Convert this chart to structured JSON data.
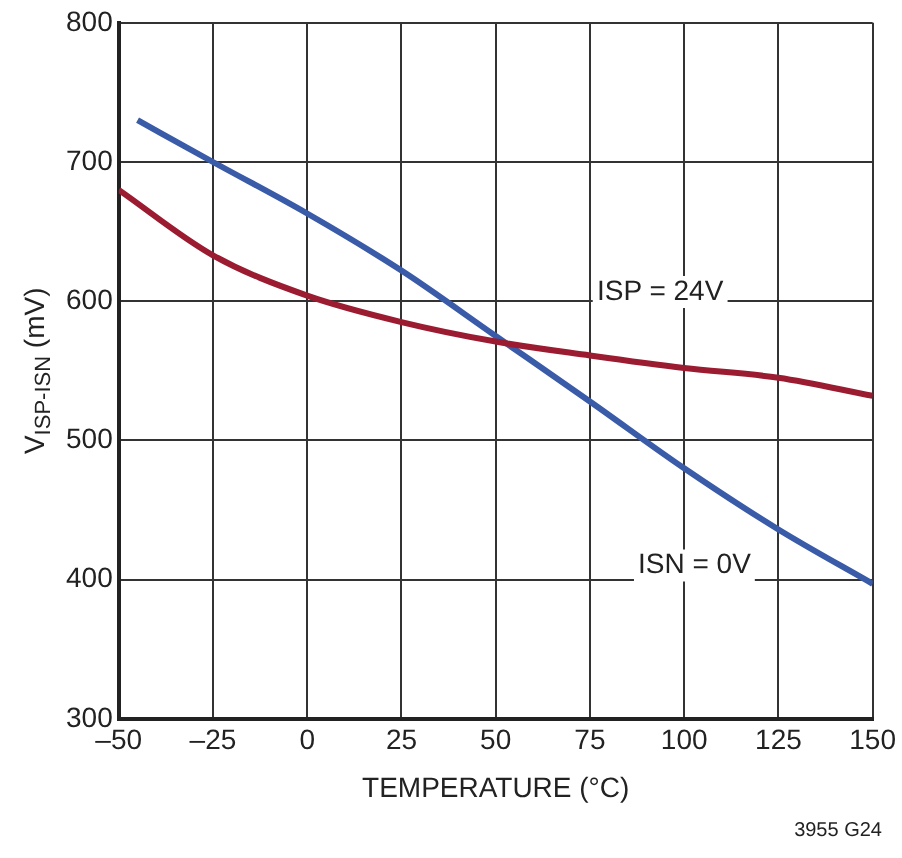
{
  "chart_data": {
    "type": "line",
    "xlabel": "TEMPERATURE (°C)",
    "ylabel": "V$_{ISP-ISN}$ (mV)",
    "x": [
      -50,
      -25,
      0,
      25,
      50,
      75,
      100,
      125,
      150
    ],
    "xlim": [
      -50,
      150
    ],
    "xticks": [
      {
        "value": -50,
        "label": "–50"
      },
      {
        "value": -25,
        "label": "–25"
      },
      0,
      25,
      50,
      75,
      100,
      125,
      150
    ],
    "ylim": [
      300,
      800
    ],
    "yticks": [
      300,
      400,
      500,
      600,
      700,
      800
    ],
    "series": [
      {
        "name": "ISP = 24V",
        "color": "#9b1c31",
        "values": [
          680,
          633,
          604,
          585,
          571,
          561,
          552,
          545,
          532
        ]
      },
      {
        "name": "ISN = 0V",
        "color": "#3a5ba8",
        "x": [
          -45,
          -25,
          0,
          25,
          50,
          75,
          100,
          125,
          150
        ],
        "values": [
          730,
          700,
          663,
          622,
          575,
          528,
          480,
          436,
          397
        ]
      }
    ],
    "grid": true,
    "legend": false,
    "marker": "none",
    "line_style": "solid",
    "annotations": [
      "3955 G24"
    ]
  }
}
